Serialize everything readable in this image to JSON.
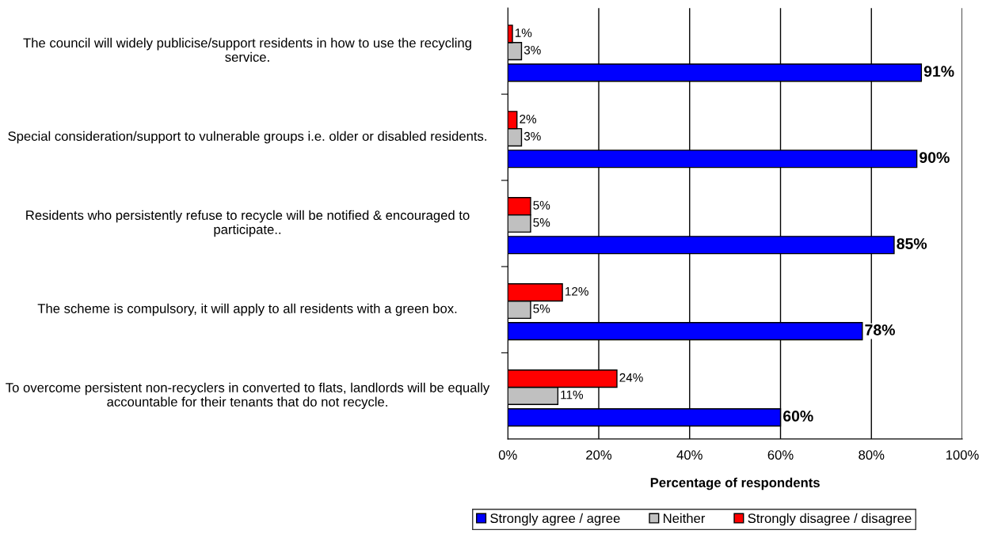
{
  "chart_data": {
    "type": "bar",
    "orientation": "horizontal",
    "categories": [
      "The council will widely publicise/support residents in how to use the recycling service.",
      "Special consideration/support to vulnerable groups i.e. older or disabled residents.",
      "Residents who persistently refuse to recycle will be notified & encouraged to participate..",
      "The scheme is compulsory, it will apply to all residents with a green box.",
      "To overcome persistent non-recyclers in converted to flats, landlords will be equally accountable for their tenants that do not recycle."
    ],
    "series": [
      {
        "name": "Strongly agree / agree",
        "color": "#0000ff",
        "values": [
          91,
          90,
          85,
          78,
          60
        ],
        "value_labels": [
          "91%",
          "90%",
          "85%",
          "78%",
          "60%"
        ]
      },
      {
        "name": "Neither",
        "color": "#c0c0c0",
        "values": [
          3,
          3,
          5,
          5,
          11
        ],
        "value_labels": [
          "3%",
          "3%",
          "5%",
          "5%",
          "11%"
        ]
      },
      {
        "name": "Strongly disagree / disagree",
        "color": "#ff0000",
        "values": [
          1,
          2,
          5,
          12,
          24
        ],
        "value_labels": [
          "1%",
          "2%",
          "5%",
          "12%",
          "24%"
        ]
      }
    ],
    "xlabel": "Percentage of respondents",
    "xlim": [
      0,
      100
    ],
    "xticks": [
      {
        "value": 0,
        "label": "0%"
      },
      {
        "value": 20,
        "label": "20%"
      },
      {
        "value": 40,
        "label": "40%"
      },
      {
        "value": 60,
        "label": "60%"
      },
      {
        "value": 80,
        "label": "80%"
      },
      {
        "value": 100,
        "label": "100%"
      }
    ],
    "grid": "x",
    "legend": "bottom"
  }
}
